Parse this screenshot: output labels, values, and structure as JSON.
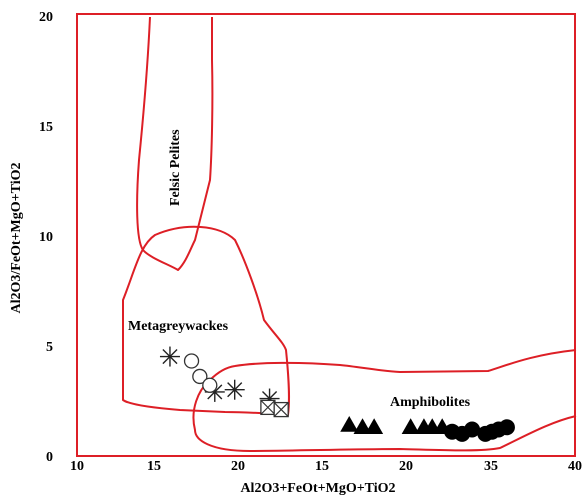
{
  "chart_data": {
    "type": "scatter",
    "title": "",
    "xlabel": "Al2O3+FeOt+MgO+TiO2",
    "ylabel": "Al2O3/FeOt+MgO+TiO2",
    "xlim": [
      10,
      40
    ],
    "ylim": [
      0,
      20
    ],
    "xticks": [
      "10",
      "15",
      "20",
      "15",
      "20",
      "25",
      "30",
      "35",
      "40"
    ],
    "yticks": [
      "0",
      "5",
      "10",
      "15",
      "20"
    ],
    "grid": false,
    "frame_color": "#dd1f26",
    "region_color": "#dd1f26",
    "regions": [
      {
        "label": "Felsic Pelites",
        "rotation": -90
      },
      {
        "label": "Metagreywackes"
      },
      {
        "label": "Amphibolites"
      }
    ],
    "series": [
      {
        "marker": "asterisk",
        "points": [
          [
            15.6,
            4.5
          ],
          [
            18.3,
            2.9
          ],
          [
            19.5,
            3.0
          ],
          [
            21.6,
            2.6
          ]
        ]
      },
      {
        "marker": "circle-open",
        "points": [
          [
            16.9,
            4.3
          ],
          [
            17.4,
            3.6
          ],
          [
            18.0,
            3.2
          ]
        ]
      },
      {
        "marker": "square-cross",
        "points": [
          [
            21.5,
            2.2
          ],
          [
            22.3,
            2.1
          ]
        ]
      },
      {
        "marker": "triangle-filled",
        "points": [
          [
            26.4,
            1.4
          ],
          [
            27.2,
            1.3
          ],
          [
            27.9,
            1.3
          ],
          [
            30.1,
            1.3
          ],
          [
            30.9,
            1.3
          ],
          [
            31.4,
            1.3
          ],
          [
            32.0,
            1.3
          ]
        ]
      },
      {
        "marker": "circle-filled",
        "points": [
          [
            32.6,
            1.1
          ],
          [
            33.2,
            1.0
          ],
          [
            33.8,
            1.2
          ],
          [
            34.6,
            1.0
          ],
          [
            35.0,
            1.1
          ],
          [
            35.4,
            1.2
          ],
          [
            35.9,
            1.3
          ]
        ]
      }
    ]
  }
}
